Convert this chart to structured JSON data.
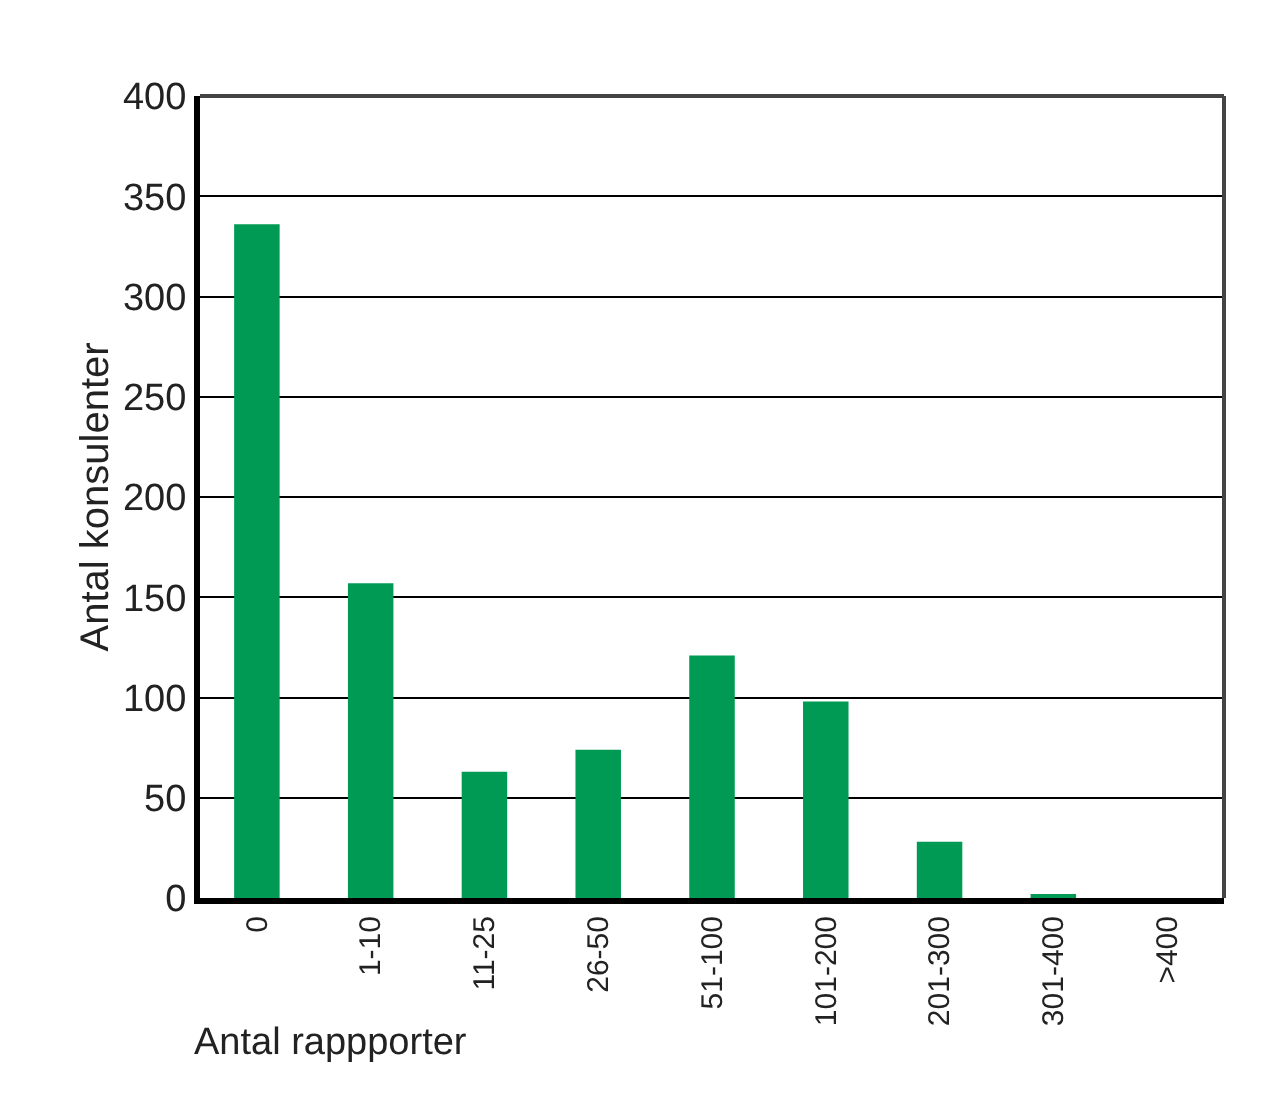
{
  "chart_data": {
    "type": "bar",
    "categories": [
      "0",
      "1-10",
      "11-25",
      "26-50",
      "51-100",
      "101-200",
      "201-300",
      "301-400",
      ">400"
    ],
    "values": [
      336,
      157,
      63,
      74,
      121,
      98,
      28,
      2,
      0
    ],
    "color": "#009a54",
    "xlabel": "Antal rappporter",
    "ylabel": "Antal konsulenter",
    "ylim": [
      0,
      400
    ],
    "yticks": [
      0,
      50,
      100,
      150,
      200,
      250,
      300,
      350,
      400
    ],
    "grid": "y"
  }
}
